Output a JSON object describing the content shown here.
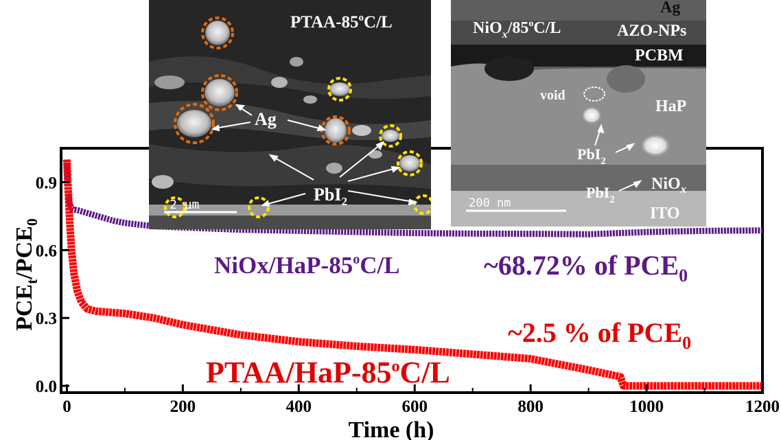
{
  "chart_data": {
    "type": "line",
    "xlabel": "Time (h)",
    "ylabel": "PCE_t/PCE_0",
    "xlim": [
      -10,
      1200
    ],
    "ylim": [
      -0.03,
      1.05
    ],
    "x_ticks": [
      "0",
      "200",
      "400",
      "600",
      "800",
      "1000",
      "1200"
    ],
    "y_ticks": [
      "0.0",
      "0.3",
      "0.6",
      "0.9"
    ],
    "grid": false,
    "series": [
      {
        "name": "NiOx/HaP-85ºC/L",
        "color": "#5b1a86",
        "x": [
          0,
          2,
          5,
          10,
          20,
          40,
          60,
          80,
          100,
          150,
          200,
          300,
          400,
          500,
          600,
          700,
          800,
          900,
          1000,
          1100,
          1200
        ],
        "y": [
          1.0,
          0.86,
          0.8,
          0.78,
          0.775,
          0.76,
          0.745,
          0.73,
          0.72,
          0.705,
          0.7,
          0.69,
          0.685,
          0.68,
          0.675,
          0.673,
          0.672,
          0.67,
          0.68,
          0.685,
          0.687
        ]
      },
      {
        "name": "PTAA/HaP-85ºC/L",
        "color": "#ff0000",
        "x": [
          0,
          2,
          5,
          8,
          12,
          18,
          25,
          35,
          50,
          75,
          100,
          150,
          200,
          300,
          400,
          500,
          600,
          700,
          800,
          900,
          955,
          960,
          1000,
          1100,
          1200
        ],
        "y": [
          1.0,
          0.88,
          0.72,
          0.6,
          0.5,
          0.42,
          0.37,
          0.34,
          0.33,
          0.325,
          0.32,
          0.3,
          0.27,
          0.225,
          0.195,
          0.175,
          0.16,
          0.14,
          0.12,
          0.07,
          0.04,
          0.0,
          0.0,
          0.0,
          0.0
        ]
      }
    ],
    "annotations": {
      "niox_label": "NiOx/HaP-85",
      "niox_label_tail": "C/L",
      "niox_value": "~68.72% of PCE",
      "ptaa_label": "PTAA/HaP-85",
      "ptaa_label_tail": "C/L",
      "ptaa_value": "~2.5 % of PCE",
      "degree": "o",
      "sub_zero": "0"
    }
  },
  "insets": {
    "left": {
      "title": "PTAA-85",
      "title_tail": "C/L",
      "degree": "o",
      "label_ag": "Ag",
      "label_pbi": "PbI",
      "sub_2": "2",
      "scalebar": "2 µm"
    },
    "right": {
      "title": "NiO",
      "title_sub": "x",
      "title_tail": "/85",
      "degree": "o",
      "title_end": "C/L",
      "layer_ag": "Ag",
      "layer_azo": "AZO-NPs",
      "layer_pcbm": "PCBM",
      "layer_hap": "HaP",
      "label_void": "void",
      "label_pbi_1": "PbI",
      "label_pbi_2": "PbI",
      "sub_2": "2",
      "layer_niox": "NiO",
      "layer_niox_sub": "x",
      "layer_ito": "ITO",
      "scalebar": "200 nm"
    }
  }
}
